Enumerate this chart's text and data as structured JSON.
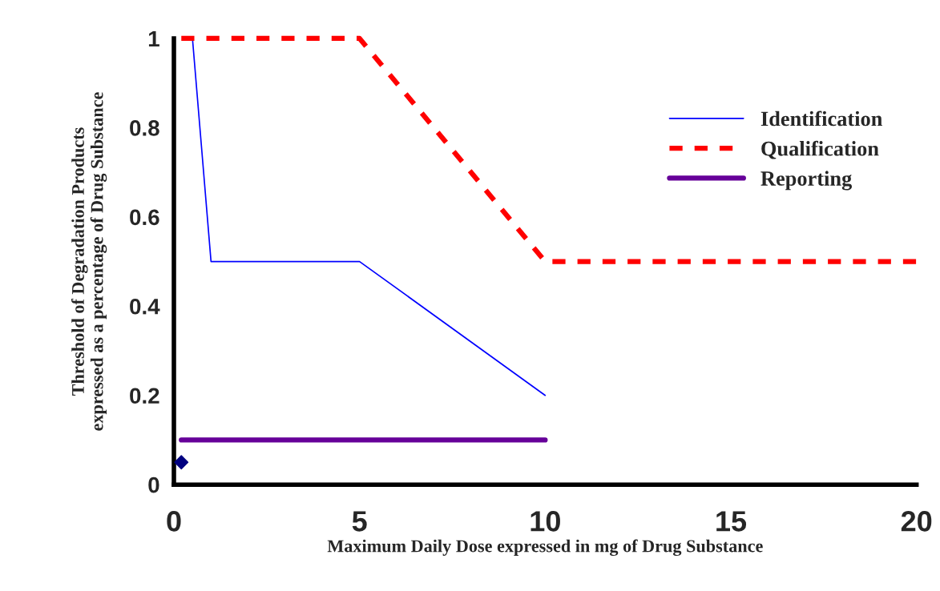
{
  "chart_data": {
    "type": "line",
    "xlabel": "Maximum Daily Dose expressed in mg of Drug Substance",
    "ylabel": "Threshold of Degradation Products\nexpressed as a percentage of Drug Substance",
    "xlim": [
      0,
      20
    ],
    "xticks": [
      0,
      5,
      10,
      15,
      20
    ],
    "ylim": [
      0,
      1
    ],
    "yticks": [
      0,
      0.2,
      0.4,
      0.6,
      0.8,
      1
    ],
    "grid": false,
    "legend": "top right",
    "series": [
      {
        "name": "Identification",
        "color": "#0000ff",
        "line_style": "solid",
        "x": [
          0.5,
          1,
          5,
          10
        ],
        "values": [
          1,
          0.5,
          0.5,
          0.2
        ]
      },
      {
        "name": "Qualification",
        "color": "#ff0000",
        "line_style": "dashed",
        "x": [
          0.2,
          5,
          10,
          20
        ],
        "values": [
          1,
          1,
          0.5,
          0.5
        ]
      },
      {
        "name": "Reporting",
        "color": "#660099",
        "line_style": "solid",
        "x": [
          0.2,
          10
        ],
        "values": [
          0.1,
          0.1
        ]
      },
      {
        "type": "scatter",
        "color": "#000080",
        "marker": "diamond",
        "x": [
          0.2
        ],
        "values": [
          0.05
        ]
      }
    ]
  }
}
